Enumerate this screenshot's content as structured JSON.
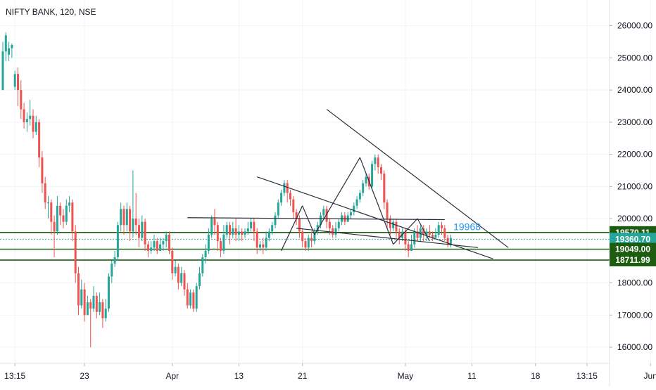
{
  "header": {
    "title": "NIFTY BANK, 120, NSE"
  },
  "chart_data": {
    "type": "candlestick",
    "symbol": "NIFTY BANK",
    "interval": "120",
    "exchange": "NSE",
    "ylim": [
      15500,
      26800
    ],
    "y_ticks": [
      16000,
      17000,
      18000,
      19000,
      20000,
      21000,
      22000,
      23000,
      24000,
      25000,
      26000
    ],
    "y_tick_labels": [
      "16000.00",
      "17000.00",
      "18000.00",
      "19000.00",
      "20000.00",
      "21000.00",
      "22000.00",
      "23000.00",
      "24000.00",
      "25000.00",
      "26000.00"
    ],
    "x_ticks": [
      {
        "label": "13:15",
        "index": 4
      },
      {
        "label": "23",
        "index": 27
      },
      {
        "label": "Apr",
        "index": 56
      },
      {
        "label": "13",
        "index": 78
      },
      {
        "label": "21",
        "index": 99
      },
      {
        "label": "May",
        "index": 133
      },
      {
        "label": "11",
        "index": 155
      },
      {
        "label": "18",
        "index": 176
      },
      {
        "label": "13:15",
        "index": 193
      },
      {
        "label": "Jun",
        "index": 214
      }
    ],
    "candles": [
      [
        24000,
        25200,
        24000,
        25500
      ],
      [
        25200,
        25700,
        24900,
        25800
      ],
      [
        25100,
        25300,
        24900,
        25500
      ],
      [
        25300,
        25400,
        25000,
        25450
      ],
      [
        24100,
        24500,
        24000,
        24600
      ],
      [
        24500,
        24000,
        23500,
        24700
      ],
      [
        24000,
        23400,
        23100,
        24300
      ],
      [
        23400,
        23000,
        22800,
        23600
      ],
      [
        23000,
        23100,
        22700,
        23300
      ],
      [
        23100,
        23200,
        22900,
        23700
      ],
      [
        23200,
        22700,
        22500,
        23400
      ],
      [
        22700,
        23000,
        22600,
        23200
      ],
      [
        23000,
        21900,
        21600,
        23100
      ],
      [
        21900,
        21100,
        20800,
        22100
      ],
      [
        21100,
        20500,
        20300,
        21300
      ],
      [
        20500,
        20500,
        20000,
        20700
      ],
      [
        20500,
        19900,
        19500,
        20600
      ],
      [
        19900,
        19600,
        18800,
        20100
      ],
      [
        19600,
        20400,
        19500,
        20700
      ],
      [
        20400,
        20100,
        19800,
        20500
      ],
      [
        20100,
        19900,
        19700,
        20300
      ],
      [
        19900,
        20400,
        19800,
        20600
      ],
      [
        20400,
        20500,
        20200,
        20700
      ],
      [
        20500,
        19600,
        19300,
        20600
      ],
      [
        19600,
        18300,
        18000,
        19800
      ],
      [
        18300,
        17300,
        17000,
        18500
      ],
      [
        17300,
        17800,
        17200,
        18100
      ],
      [
        17800,
        17000,
        16800,
        18000
      ],
      [
        17000,
        17400,
        17100,
        17600
      ],
      [
        17400,
        17200,
        16000,
        17500
      ],
      [
        17200,
        17600,
        17100,
        17900
      ],
      [
        17600,
        17100,
        16900,
        17700
      ],
      [
        17100,
        17400,
        17000,
        17700
      ],
      [
        17400,
        16900,
        16600,
        17500
      ],
      [
        16900,
        17200,
        16800,
        17500
      ],
      [
        17200,
        18200,
        17100,
        18300
      ],
      [
        18200,
        18600,
        18000,
        18700
      ],
      [
        18600,
        18800,
        18500,
        19000
      ],
      [
        18800,
        19800,
        18700,
        19900
      ],
      [
        19800,
        20300,
        19600,
        20500
      ],
      [
        20300,
        19800,
        19500,
        20400
      ],
      [
        19800,
        20300,
        19600,
        20500
      ],
      [
        20300,
        19600,
        19300,
        20400
      ],
      [
        19600,
        20000,
        19400,
        21500
      ],
      [
        20000,
        19800,
        19500,
        20800
      ],
      [
        19800,
        19400,
        19100,
        20000
      ],
      [
        19400,
        19900,
        19300,
        20100
      ],
      [
        19900,
        19200,
        19000,
        20000
      ],
      [
        19200,
        19000,
        18800,
        19300
      ],
      [
        19000,
        19100,
        18900,
        19300
      ],
      [
        19100,
        19300,
        19000,
        19500
      ],
      [
        19300,
        19000,
        18900,
        19400
      ],
      [
        19000,
        19200,
        19000,
        19400
      ],
      [
        19200,
        19300,
        19000,
        19400
      ],
      [
        19300,
        19500,
        19100,
        19600
      ],
      [
        19500,
        19000,
        18900,
        19600
      ],
      [
        19000,
        18300,
        18100,
        19100
      ],
      [
        18300,
        18500,
        18200,
        18700
      ],
      [
        18500,
        18000,
        17800,
        18600
      ],
      [
        18000,
        18300,
        17900,
        18500
      ],
      [
        18300,
        17800,
        17600,
        18400
      ],
      [
        17800,
        17300,
        17200,
        18000
      ],
      [
        17300,
        17700,
        17200,
        17800
      ],
      [
        17700,
        17200,
        17100,
        17800
      ],
      [
        17200,
        17900,
        17100,
        18000
      ],
      [
        17900,
        18300,
        17800,
        18500
      ],
      [
        18300,
        18800,
        18200,
        18900
      ],
      [
        18800,
        19000,
        18600,
        19200
      ],
      [
        19000,
        19500,
        18900,
        19700
      ],
      [
        19500,
        20000,
        19400,
        20100
      ],
      [
        20000,
        19800,
        19500,
        20300
      ],
      [
        19800,
        19300,
        19000,
        19900
      ],
      [
        19300,
        19000,
        18800,
        19400
      ],
      [
        19000,
        19500,
        18900,
        19800
      ],
      [
        19500,
        19800,
        19400,
        19900
      ],
      [
        19800,
        19500,
        19200,
        19900
      ],
      [
        19500,
        19700,
        19400,
        19900
      ],
      [
        19700,
        19500,
        19300,
        20000
      ],
      [
        19500,
        19600,
        19300,
        19800
      ],
      [
        19600,
        19500,
        19300,
        19700
      ],
      [
        19500,
        19600,
        19400,
        19700
      ],
      [
        19600,
        19700,
        19500,
        19900
      ],
      [
        19700,
        19900,
        19600,
        20000
      ],
      [
        19900,
        19600,
        19300,
        20000
      ],
      [
        19600,
        19100,
        18900,
        19700
      ],
      [
        19100,
        19200,
        19000,
        19300
      ],
      [
        19200,
        19100,
        18900,
        19400
      ],
      [
        19100,
        19400,
        19000,
        19600
      ],
      [
        19400,
        19600,
        19300,
        19700
      ],
      [
        19600,
        19800,
        19500,
        19900
      ],
      [
        19800,
        20100,
        19700,
        20200
      ],
      [
        20100,
        20500,
        20000,
        20600
      ],
      [
        20500,
        20800,
        20400,
        20900
      ],
      [
        20800,
        21100,
        20700,
        21200
      ],
      [
        21100,
        20800,
        20500,
        21200
      ],
      [
        20800,
        20600,
        20400,
        20900
      ],
      [
        20600,
        20200,
        20000,
        20700
      ],
      [
        20200,
        20000,
        19800,
        20300
      ],
      [
        20000,
        19600,
        19400,
        20100
      ],
      [
        19600,
        19300,
        19100,
        19700
      ],
      [
        19300,
        19100,
        19000,
        19400
      ],
      [
        19100,
        19400,
        19000,
        19500
      ],
      [
        19400,
        19300,
        19100,
        19600
      ],
      [
        19300,
        19600,
        19200,
        19700
      ],
      [
        19600,
        19800,
        19500,
        19900
      ],
      [
        19800,
        20100,
        19700,
        20200
      ],
      [
        20100,
        20300,
        20000,
        20400
      ],
      [
        20300,
        19900,
        19700,
        20400
      ],
      [
        19900,
        19700,
        19500,
        20000
      ],
      [
        19700,
        19500,
        19400,
        19800
      ],
      [
        19500,
        19700,
        19400,
        19900
      ],
      [
        19700,
        19900,
        19600,
        20000
      ],
      [
        19900,
        20100,
        19800,
        20200
      ],
      [
        20100,
        19900,
        19800,
        20200
      ],
      [
        19900,
        20100,
        19900,
        20200
      ],
      [
        20100,
        20200,
        20000,
        20300
      ],
      [
        20200,
        20400,
        20100,
        20500
      ],
      [
        20400,
        20600,
        20300,
        20700
      ],
      [
        20600,
        20800,
        20500,
        20900
      ],
      [
        20800,
        21100,
        20700,
        21200
      ],
      [
        21100,
        21300,
        21000,
        21400
      ],
      [
        21300,
        21000,
        20900,
        21400
      ],
      [
        21000,
        21700,
        20900,
        21800
      ],
      [
        21700,
        21900,
        21500,
        22000
      ],
      [
        21900,
        21600,
        21400,
        22000
      ],
      [
        21600,
        21400,
        21200,
        21700
      ],
      [
        21400,
        20500,
        20300,
        21500
      ],
      [
        20500,
        20000,
        19700,
        20600
      ],
      [
        20000,
        19700,
        19500,
        20100
      ],
      [
        19700,
        19900,
        19600,
        20000
      ],
      [
        19900,
        19600,
        19400,
        20000
      ],
      [
        19600,
        19400,
        19200,
        19700
      ],
      [
        19400,
        19600,
        19300,
        19700
      ],
      [
        19600,
        19200,
        19000,
        19700
      ],
      [
        19200,
        19000,
        18800,
        19300
      ],
      [
        19000,
        19200,
        19000,
        19500
      ],
      [
        19200,
        19600,
        19100,
        19700
      ],
      [
        19600,
        19400,
        19300,
        19800
      ],
      [
        19400,
        19700,
        19300,
        19800
      ],
      [
        19700,
        19500,
        19300,
        19800
      ],
      [
        19500,
        19600,
        19300,
        19700
      ],
      [
        19600,
        19500,
        19400,
        19800
      ],
      [
        19500,
        19400,
        19300,
        19600
      ],
      [
        19400,
        19500,
        19400,
        19700
      ],
      [
        19500,
        19800,
        19400,
        19900
      ],
      [
        19800,
        19700,
        19500,
        19900
      ],
      [
        19700,
        19400,
        19300,
        19800
      ],
      [
        19400,
        19200,
        19100,
        19500
      ],
      [
        19200,
        19400,
        19100,
        19500
      ]
    ],
    "trendlines": [
      {
        "name": "upper-trendline",
        "from": {
          "index": 107,
          "value": 23400
        },
        "to": {
          "index": 167,
          "value": 19100
        }
      },
      {
        "name": "channel-top",
        "from": {
          "index": 84,
          "value": 21300
        },
        "to": {
          "index": 162,
          "value": 18750
        }
      },
      {
        "name": "channel-bottom",
        "from": {
          "index": 97,
          "value": 19700
        },
        "to": {
          "index": 157,
          "value": 19100
        }
      },
      {
        "name": "resistance-19968",
        "from": {
          "index": 61,
          "value": 20030
        },
        "to": {
          "index": 146,
          "value": 19968
        }
      },
      {
        "name": "zigzag-1",
        "from": {
          "index": 92,
          "value": 19000
        },
        "to": {
          "index": 99,
          "value": 20400
        }
      },
      {
        "name": "zigzag-2",
        "from": {
          "index": 99,
          "value": 20400
        },
        "to": {
          "index": 103,
          "value": 19500
        }
      },
      {
        "name": "zigzag-3",
        "from": {
          "index": 103,
          "value": 19500
        },
        "to": {
          "index": 118,
          "value": 21900
        }
      },
      {
        "name": "zigzag-4",
        "from": {
          "index": 118,
          "value": 21900
        },
        "to": {
          "index": 129,
          "value": 19200
        }
      },
      {
        "name": "zigzag-5",
        "from": {
          "index": 129,
          "value": 19200
        },
        "to": {
          "index": 137,
          "value": 20000
        }
      },
      {
        "name": "zigzag-6",
        "from": {
          "index": 137,
          "value": 20000
        },
        "to": {
          "index": 141,
          "value": 19300
        }
      }
    ],
    "annotation": {
      "text": "19968",
      "index": 147,
      "value": 19968,
      "color": "#2196f3"
    },
    "horizontal_levels": [
      {
        "value": 19570.11,
        "label": "19570.11",
        "color": "#1e5c12",
        "style": "solid"
      },
      {
        "value": 19360.7,
        "label": "19360.70",
        "color": "#26a69a",
        "style": "dotted"
      },
      {
        "value": 19049.0,
        "label": "19049.00",
        "color": "#1e5c12",
        "style": "solid"
      },
      {
        "value": 18711.99,
        "label": "18711.99",
        "color": "#1e5c12",
        "style": "solid"
      }
    ],
    "colors": {
      "up": "#26a69a",
      "down": "#ef5350",
      "trendline": "#2a2e39",
      "axis_text": "#131722",
      "grid": "#f0f3fa"
    }
  }
}
